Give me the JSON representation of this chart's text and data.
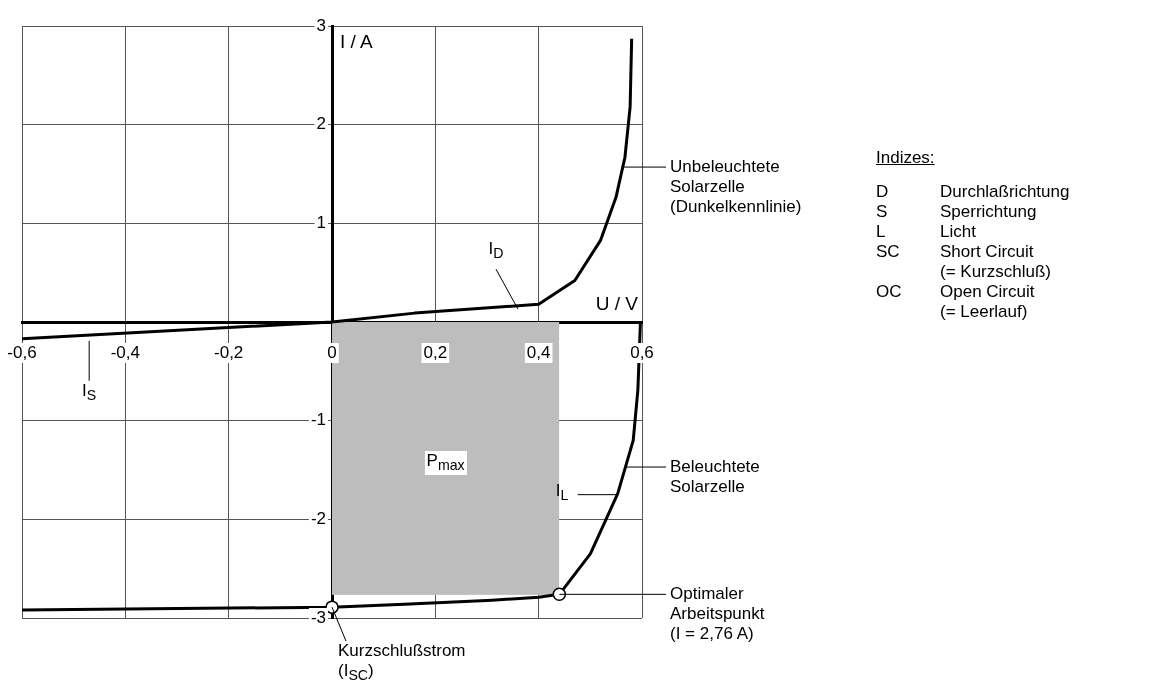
{
  "chart_data": {
    "type": "line",
    "xlabel": "U / V",
    "ylabel": "I / A",
    "xlim": [
      -0.6,
      0.6
    ],
    "ylim": [
      -3,
      3
    ],
    "xticks": [
      {
        "value": -0.6,
        "label": "-0,6"
      },
      {
        "value": -0.4,
        "label": "-0,4"
      },
      {
        "value": -0.2,
        "label": "-0,2"
      },
      0,
      {
        "value": 0.2,
        "label": "0,2"
      },
      {
        "value": 0.4,
        "label": "0,4"
      },
      {
        "value": 0.6,
        "label": "0,6"
      }
    ],
    "yticks": [
      -3,
      -2,
      -1,
      {
        "value": 0,
        "label": null
      },
      1,
      2,
      3
    ],
    "grid": true,
    "marker": "none",
    "line_style": "solid",
    "series": [
      {
        "type": "area",
        "color": "#bdbdbd",
        "x": [
          0,
          0.44
        ],
        "values": [
          -2.76,
          -2.76
        ]
      },
      {
        "type": "line",
        "color": "#000000",
        "x": [
          -0.6,
          0,
          0.16,
          0.4,
          0.47,
          0.52,
          0.55,
          0.567,
          0.577,
          0.58
        ],
        "values": [
          -0.17,
          0,
          0.09,
          0.18,
          0.42,
          0.83,
          1.27,
          1.67,
          2.18,
          2.87
        ]
      },
      {
        "type": "line",
        "color": "#000000",
        "x": [
          -0.6,
          0,
          0.14,
          0.31,
          0.4,
          0.44,
          0.5,
          0.553,
          0.583,
          0.592,
          0.597
        ],
        "values": [
          -2.92,
          -2.89,
          -2.86,
          -2.82,
          -2.79,
          -2.76,
          -2.35,
          -1.74,
          -1.2,
          -0.69,
          0
        ]
      },
      {
        "type": "scatter",
        "color": "#ffffff",
        "marker": "circle",
        "x": [
          0,
          0.44
        ],
        "values": [
          -2.89,
          -2.76
        ]
      }
    ],
    "annotations": [
      {
        "text": "Unbeleuchtete\nSolarzelle\n(Dunkelkennlinie)",
        "x": 0.565,
        "y": 1.57
      },
      {
        "text": "I$_{D}$",
        "x": 0.36,
        "y": 0.13
      },
      {
        "text": "I$_{S}$",
        "x": -0.47,
        "y": -0.19
      },
      {
        "text": "P$_{max}$",
        "x": 0.22,
        "y": -1.45
      },
      {
        "text": "Beleuchtete\nSolarzelle",
        "x": 0.57,
        "y": -1.47
      },
      {
        "text": "I$_{L}$",
        "x": 0.553,
        "y": -1.75
      },
      {
        "text": "Optimaler\nArbeitspunkt\n(I = 2,76 A)",
        "x": 0.44,
        "y": -2.76
      },
      {
        "text": "Kurzschlußstrom\n(I$_{SC}$)",
        "x": 0,
        "y": -2.89
      },
      "Indizes:",
      "D\tDurchlaßrichtung",
      "S\tSperrichtung",
      "L\tLicht",
      "SC\tShort Circuit\n(= Kurzschluß)",
      "OC\tOpen Circuit\n(= Leerlauf)"
    ]
  }
}
